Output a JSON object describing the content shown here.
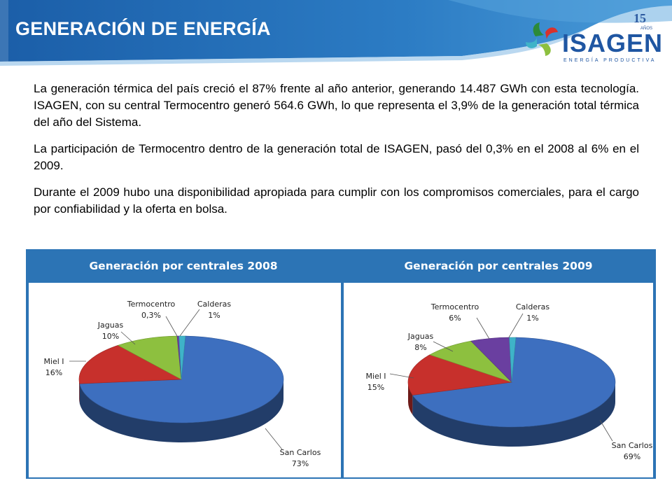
{
  "title": "GENERACIÓN DE ENERGÍA",
  "logo": {
    "name": "ISAGEN",
    "tagline": "ENERGÍA PRODUCTIVA",
    "anniversary": "15",
    "anniversary_label": "AÑOS"
  },
  "paragraphs": [
    "La generación térmica del país creció el 87% frente al año anterior, generando 14.487 GWh con esta tecnología. ISAGEN, con su central Termocentro generó 564.6 GWh, lo que representa el 3,9% de la generación total térmica del año del Sistema.",
    "La participación de Termocentro dentro de la generación total de ISAGEN, pasó del 0,3% en el 2008 al 6% en el 2009.",
    "Durante el 2009 hubo una disponibilidad apropiada para cumplir con los compromisos comerciales, para el cargo por confiabilidad y la oferta en bolsa."
  ],
  "colors": {
    "blue": "#3d6fbf",
    "red": "#c7302c",
    "green": "#8dc03f",
    "purple": "#6a3fa0",
    "cyan": "#3fb3c8",
    "panel": "#2c74b5"
  },
  "chart_data": [
    {
      "type": "pie",
      "title": "Generación por centrales 2008",
      "slices": [
        {
          "label": "San Carlos",
          "value": 73,
          "value_label": "73%",
          "color": "#3d6fbf"
        },
        {
          "label": "Miel I",
          "value": 16,
          "value_label": "16%",
          "color": "#c7302c"
        },
        {
          "label": "Jaguas",
          "value": 10,
          "value_label": "10%",
          "color": "#8dc03f"
        },
        {
          "label": "Termocentro",
          "value": 0.3,
          "value_label": "0,3%",
          "color": "#6a3fa0"
        },
        {
          "label": "Calderas",
          "value": 1,
          "value_label": "1%",
          "color": "#3fb3c8"
        }
      ]
    },
    {
      "type": "pie",
      "title": "Generación por centrales 2009",
      "slices": [
        {
          "label": "San Carlos",
          "value": 69,
          "value_label": "69%",
          "color": "#3d6fbf"
        },
        {
          "label": "Miel I",
          "value": 15,
          "value_label": "15%",
          "color": "#c7302c"
        },
        {
          "label": "Jaguas",
          "value": 8,
          "value_label": "8%",
          "color": "#8dc03f"
        },
        {
          "label": "Termocentro",
          "value": 6,
          "value_label": "6%",
          "color": "#6a3fa0"
        },
        {
          "label": "Calderas",
          "value": 1,
          "value_label": "1%",
          "color": "#3fb3c8"
        }
      ]
    }
  ]
}
